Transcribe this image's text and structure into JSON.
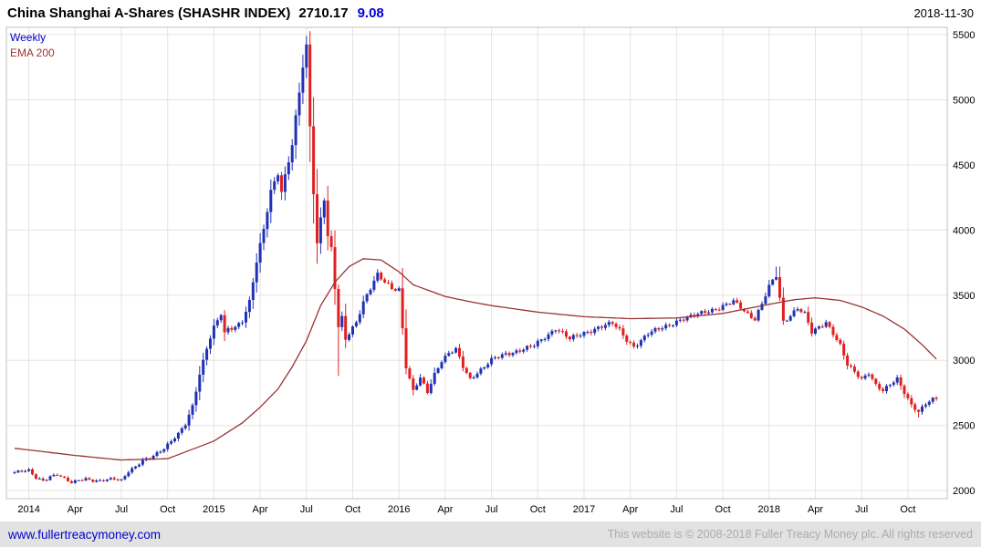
{
  "header": {
    "title": "China Shanghai A-Shares (SHASHR INDEX)",
    "price": "2710.17",
    "change": "9.08",
    "date": "2018-11-30"
  },
  "legend": {
    "interval": "Weekly",
    "overlay": "EMA 200"
  },
  "footer": {
    "site_link": "www.fullertreacymoney.com",
    "copyright": "This website is © 2008-2018 Fuller Treacy Money plc. All rights reserved"
  },
  "chart_data": {
    "type": "candlestick",
    "title": "China Shanghai A-Shares (SHASHR INDEX)",
    "interval": "Weekly",
    "overlay": "EMA 200",
    "last_price": 2710.17,
    "change": 9.08,
    "as_of": "2018-11-30",
    "xlabel": "",
    "ylabel": "",
    "grid": true,
    "legend_position": "top-left",
    "weeks": 260,
    "ylim": [
      1938,
      5556
    ],
    "yticks": [
      2000,
      2500,
      3000,
      3500,
      4000,
      4500,
      5000,
      5500
    ],
    "xticks": [
      {
        "label": "2014",
        "week": 4
      },
      {
        "label": "Apr",
        "week": 17
      },
      {
        "label": "Jul",
        "week": 30
      },
      {
        "label": "Oct",
        "week": 43
      },
      {
        "label": "2015",
        "week": 56
      },
      {
        "label": "Apr",
        "week": 69
      },
      {
        "label": "Jul",
        "week": 82
      },
      {
        "label": "Oct",
        "week": 95
      },
      {
        "label": "2016",
        "week": 108
      },
      {
        "label": "Apr",
        "week": 121
      },
      {
        "label": "Jul",
        "week": 134
      },
      {
        "label": "Oct",
        "week": 147
      },
      {
        "label": "2017",
        "week": 160
      },
      {
        "label": "Apr",
        "week": 173
      },
      {
        "label": "Jul",
        "week": 186
      },
      {
        "label": "Oct",
        "week": 199
      },
      {
        "label": "2018",
        "week": 212
      },
      {
        "label": "Apr",
        "week": 225
      },
      {
        "label": "Jul",
        "week": 238
      },
      {
        "label": "Oct",
        "week": 251
      }
    ],
    "price_keyframes": [
      [
        0,
        2140
      ],
      [
        4,
        2150
      ],
      [
        6,
        2100
      ],
      [
        8,
        2080
      ],
      [
        10,
        2110
      ],
      [
        12,
        2120
      ],
      [
        14,
        2085
      ],
      [
        16,
        2060
      ],
      [
        18,
        2085
      ],
      [
        20,
        2095
      ],
      [
        22,
        2075
      ],
      [
        24,
        2068
      ],
      [
        26,
        2082
      ],
      [
        28,
        2092
      ],
      [
        30,
        2085
      ],
      [
        32,
        2150
      ],
      [
        34,
        2180
      ],
      [
        36,
        2225
      ],
      [
        38,
        2250
      ],
      [
        40,
        2290
      ],
      [
        42,
        2330
      ],
      [
        44,
        2380
      ],
      [
        46,
        2430
      ],
      [
        48,
        2505
      ],
      [
        50,
        2650
      ],
      [
        52,
        2900
      ],
      [
        54,
        3100
      ],
      [
        56,
        3250
      ],
      [
        58,
        3350
      ],
      [
        59,
        3200
      ],
      [
        60,
        3240
      ],
      [
        62,
        3260
      ],
      [
        64,
        3310
      ],
      [
        66,
        3450
      ],
      [
        68,
        3750
      ],
      [
        70,
        4000
      ],
      [
        72,
        4300
      ],
      [
        74,
        4450
      ],
      [
        75,
        4300
      ],
      [
        76,
        4420
      ],
      [
        78,
        4650
      ],
      [
        80,
        5050
      ],
      [
        81,
        5250
      ],
      [
        82,
        5400
      ],
      [
        83,
        4800
      ],
      [
        84,
        4300
      ],
      [
        85,
        3900
      ],
      [
        86,
        4100
      ],
      [
        87,
        4250
      ],
      [
        88,
        3950
      ],
      [
        89,
        3850
      ],
      [
        90,
        3550
      ],
      [
        91,
        3250
      ],
      [
        92,
        3320
      ],
      [
        93,
        3160
      ],
      [
        94,
        3210
      ],
      [
        96,
        3300
      ],
      [
        98,
        3450
      ],
      [
        100,
        3550
      ],
      [
        102,
        3650
      ],
      [
        104,
        3600
      ],
      [
        106,
        3560
      ],
      [
        108,
        3550
      ],
      [
        109,
        3250
      ],
      [
        110,
        2950
      ],
      [
        111,
        2850
      ],
      [
        112,
        2760
      ],
      [
        114,
        2860
      ],
      [
        116,
        2760
      ],
      [
        118,
        2900
      ],
      [
        120,
        3000
      ],
      [
        122,
        3050
      ],
      [
        124,
        3080
      ],
      [
        126,
        2950
      ],
      [
        128,
        2860
      ],
      [
        130,
        2910
      ],
      [
        132,
        2950
      ],
      [
        134,
        3000
      ],
      [
        138,
        3050
      ],
      [
        142,
        3080
      ],
      [
        146,
        3110
      ],
      [
        150,
        3200
      ],
      [
        152,
        3250
      ],
      [
        154,
        3210
      ],
      [
        156,
        3160
      ],
      [
        160,
        3210
      ],
      [
        164,
        3255
      ],
      [
        168,
        3280
      ],
      [
        170,
        3230
      ],
      [
        172,
        3160
      ],
      [
        174,
        3110
      ],
      [
        176,
        3150
      ],
      [
        178,
        3200
      ],
      [
        182,
        3255
      ],
      [
        186,
        3300
      ],
      [
        190,
        3330
      ],
      [
        194,
        3380
      ],
      [
        198,
        3400
      ],
      [
        200,
        3420
      ],
      [
        202,
        3450
      ],
      [
        204,
        3410
      ],
      [
        206,
        3360
      ],
      [
        208,
        3320
      ],
      [
        210,
        3430
      ],
      [
        212,
        3560
      ],
      [
        214,
        3650
      ],
      [
        215,
        3480
      ],
      [
        216,
        3300
      ],
      [
        218,
        3350
      ],
      [
        220,
        3400
      ],
      [
        222,
        3350
      ],
      [
        224,
        3210
      ],
      [
        226,
        3255
      ],
      [
        228,
        3300
      ],
      [
        230,
        3210
      ],
      [
        232,
        3110
      ],
      [
        234,
        2960
      ],
      [
        236,
        2910
      ],
      [
        238,
        2860
      ],
      [
        240,
        2910
      ],
      [
        242,
        2810
      ],
      [
        244,
        2760
      ],
      [
        246,
        2810
      ],
      [
        248,
        2860
      ],
      [
        250,
        2760
      ],
      [
        252,
        2660
      ],
      [
        254,
        2600
      ],
      [
        256,
        2660
      ],
      [
        258,
        2700
      ],
      [
        259,
        2710
      ]
    ],
    "ema_keyframes": [
      [
        0,
        2325
      ],
      [
        17,
        2270
      ],
      [
        30,
        2235
      ],
      [
        43,
        2245
      ],
      [
        56,
        2380
      ],
      [
        64,
        2520
      ],
      [
        69,
        2640
      ],
      [
        74,
        2780
      ],
      [
        78,
        2950
      ],
      [
        82,
        3150
      ],
      [
        86,
        3420
      ],
      [
        90,
        3600
      ],
      [
        94,
        3720
      ],
      [
        98,
        3780
      ],
      [
        103,
        3770
      ],
      [
        108,
        3680
      ],
      [
        112,
        3580
      ],
      [
        121,
        3490
      ],
      [
        128,
        3450
      ],
      [
        134,
        3420
      ],
      [
        147,
        3370
      ],
      [
        160,
        3335
      ],
      [
        173,
        3320
      ],
      [
        186,
        3325
      ],
      [
        199,
        3360
      ],
      [
        212,
        3430
      ],
      [
        219,
        3465
      ],
      [
        225,
        3480
      ],
      [
        232,
        3460
      ],
      [
        238,
        3410
      ],
      [
        244,
        3340
      ],
      [
        250,
        3240
      ],
      [
        255,
        3120
      ],
      [
        259,
        3010
      ]
    ],
    "high_overrides": {
      "82": 5452,
      "214": 3720
    },
    "low_overrides": {
      "91": 2880,
      "112": 2730,
      "254": 2560
    },
    "colors": {
      "up": "#2031b4",
      "down": "#e02020",
      "ema": "#993333",
      "grid": "#e8e2e2",
      "frame": "#c0c0c0",
      "change_text": "#0000dd",
      "link": "#0000cc"
    }
  }
}
